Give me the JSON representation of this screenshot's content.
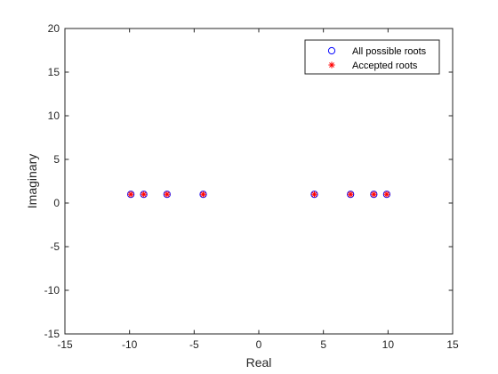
{
  "chart_data": {
    "type": "scatter",
    "title": "",
    "xlabel": "Real",
    "ylabel": "Imaginary",
    "xlim": [
      -15,
      15
    ],
    "ylim": [
      -15,
      20
    ],
    "xticks": [
      -15,
      -10,
      -5,
      0,
      5,
      10,
      15
    ],
    "yticks": [
      -15,
      -10,
      -5,
      0,
      5,
      10,
      15,
      20
    ],
    "grid": false,
    "legend_position": "top-right",
    "series": [
      {
        "name": "All possible roots",
        "marker": "circle",
        "color": "#0000ff",
        "x": [
          -9.9,
          -8.9,
          -7.1,
          -4.3,
          4.3,
          7.1,
          8.9,
          9.9
        ],
        "y": [
          1,
          1,
          1,
          1,
          1,
          1,
          1,
          1
        ]
      },
      {
        "name": "Accepted roots",
        "marker": "asterisk",
        "color": "#ff0000",
        "x": [
          -9.9,
          -8.9,
          -7.1,
          -4.3,
          4.3,
          7.1,
          8.9,
          9.9
        ],
        "y": [
          1,
          1,
          1,
          1,
          1,
          1,
          1,
          1
        ]
      }
    ]
  }
}
